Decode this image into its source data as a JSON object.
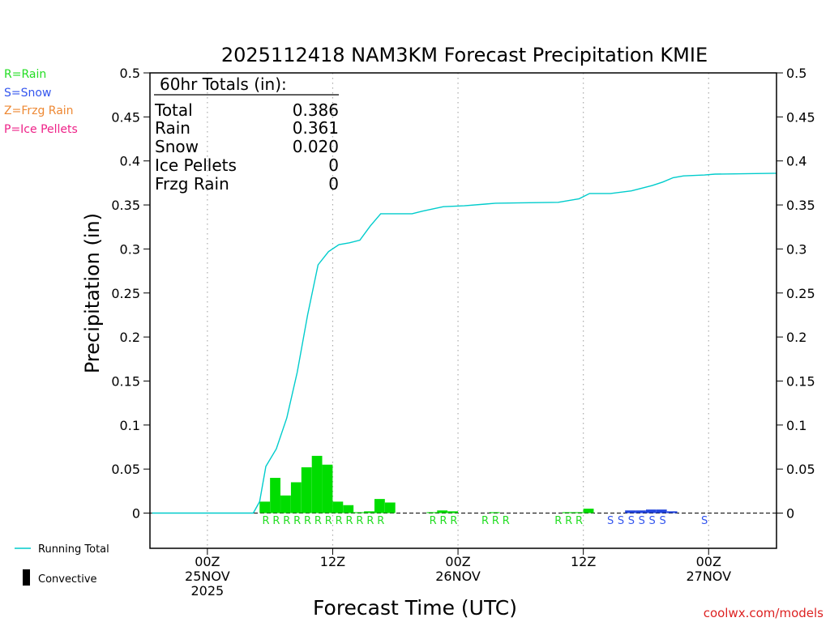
{
  "title": "2025112418 NAM3KM Forecast Precipitation KMIE",
  "legend_types": [
    {
      "label": "R=Rain",
      "color": "#22dd22"
    },
    {
      "label": "S=Snow",
      "color": "#3355ee"
    },
    {
      "label": "Z=Frzg Rain",
      "color": "#ee8833"
    },
    {
      "label": "P=Ice Pellets",
      "color": "#ee2288"
    }
  ],
  "totals": {
    "header": "60hr Totals (in):",
    "rows": [
      {
        "label": "Total",
        "value": "0.386"
      },
      {
        "label": "Rain",
        "value": "0.361"
      },
      {
        "label": "Snow",
        "value": "0.020"
      },
      {
        "label": "Ice Pellets",
        "value": "0"
      },
      {
        "label": "Frzg Rain",
        "value": "0"
      }
    ]
  },
  "bottom_legend": {
    "running_total": "Running Total",
    "convective": "Convective"
  },
  "credit": "coolwx.com/models",
  "colors": {
    "rain_bar": "#00dd00",
    "snow_bar": "#2244dd",
    "running_total": "#00cccc",
    "rain_marker": "#22dd22",
    "snow_marker": "#3355ee",
    "credit": "#dd2222"
  },
  "chart_data": {
    "type": "bar",
    "title": "2025112418 NAM3KM Forecast Precipitation KMIE",
    "xlabel": "Forecast Time (UTC)",
    "ylabel": "Precipitation (in)",
    "ylim": [
      -0.04,
      0.5
    ],
    "xlim_hours": [
      -5.5,
      54.5
    ],
    "yticks": [
      0,
      0.05,
      0.1,
      0.15,
      0.2,
      0.25,
      0.3,
      0.35,
      0.4,
      0.45,
      0.5
    ],
    "ytick_labels": [
      "0",
      "0.05",
      "0.1",
      "0.15",
      "0.2",
      "0.25",
      "0.3",
      "0.35",
      "0.4",
      "0.45",
      "0.5"
    ],
    "x_ticks": [
      {
        "hour": 0,
        "lines": [
          "00Z",
          "25NOV",
          "2025"
        ]
      },
      {
        "hour": 12,
        "lines": [
          "12Z"
        ]
      },
      {
        "hour": 24,
        "lines": [
          "00Z",
          "26NOV"
        ]
      },
      {
        "hour": 36,
        "lines": [
          "12Z"
        ]
      },
      {
        "hour": 48,
        "lines": [
          "00Z",
          "27NOV"
        ]
      }
    ],
    "rain_bars": [
      {
        "hour": 5,
        "value": 0.013
      },
      {
        "hour": 6,
        "value": 0.04
      },
      {
        "hour": 7,
        "value": 0.02
      },
      {
        "hour": 8,
        "value": 0.035
      },
      {
        "hour": 9,
        "value": 0.052
      },
      {
        "hour": 10,
        "value": 0.065
      },
      {
        "hour": 11,
        "value": 0.055
      },
      {
        "hour": 12,
        "value": 0.013
      },
      {
        "hour": 13,
        "value": 0.009
      },
      {
        "hour": 14,
        "value": 0.001
      },
      {
        "hour": 15,
        "value": 0.002
      },
      {
        "hour": 16,
        "value": 0.016
      },
      {
        "hour": 17,
        "value": 0.012
      },
      {
        "hour": 21,
        "value": 0.001
      },
      {
        "hour": 22,
        "value": 0.003
      },
      {
        "hour": 23,
        "value": 0.002
      },
      {
        "hour": 27,
        "value": 0.001
      },
      {
        "hour": 34,
        "value": 0.001
      },
      {
        "hour": 35,
        "value": 0.001
      },
      {
        "hour": 36,
        "value": 0.005
      }
    ],
    "snow_bars": [
      {
        "hour": 40,
        "value": 0.003
      },
      {
        "hour": 41,
        "value": 0.003
      },
      {
        "hour": 42,
        "value": 0.004
      },
      {
        "hour": 43,
        "value": 0.004
      },
      {
        "hour": 44,
        "value": 0.002
      }
    ],
    "running_total": [
      [
        -5.3,
        0
      ],
      [
        4.4,
        0
      ],
      [
        5,
        0.013
      ],
      [
        5.6,
        0.053
      ],
      [
        6.6,
        0.073
      ],
      [
        7.6,
        0.108
      ],
      [
        8.6,
        0.16
      ],
      [
        9.6,
        0.225
      ],
      [
        10.6,
        0.282
      ],
      [
        11.6,
        0.297
      ],
      [
        12.6,
        0.305
      ],
      [
        13.6,
        0.307
      ],
      [
        14.6,
        0.31
      ],
      [
        15.6,
        0.326
      ],
      [
        16.6,
        0.34
      ],
      [
        19.6,
        0.34
      ],
      [
        20.6,
        0.343
      ],
      [
        22.6,
        0.348
      ],
      [
        24.6,
        0.349
      ],
      [
        26.6,
        0.351
      ],
      [
        27.6,
        0.352
      ],
      [
        33.6,
        0.353
      ],
      [
        35.6,
        0.357
      ],
      [
        36.6,
        0.363
      ],
      [
        38.6,
        0.363
      ],
      [
        40.6,
        0.366
      ],
      [
        42.6,
        0.372
      ],
      [
        43.6,
        0.376
      ],
      [
        44.6,
        0.381
      ],
      [
        45.6,
        0.383
      ],
      [
        47.6,
        0.384
      ],
      [
        48.6,
        0.385
      ],
      [
        54.5,
        0.386
      ]
    ],
    "type_markers": [
      {
        "hour": 5.6,
        "type": "R"
      },
      {
        "hour": 6.6,
        "type": "R"
      },
      {
        "hour": 7.6,
        "type": "R"
      },
      {
        "hour": 8.6,
        "type": "R"
      },
      {
        "hour": 9.6,
        "type": "R"
      },
      {
        "hour": 10.6,
        "type": "R"
      },
      {
        "hour": 11.6,
        "type": "R"
      },
      {
        "hour": 12.6,
        "type": "R"
      },
      {
        "hour": 13.6,
        "type": "R"
      },
      {
        "hour": 14.6,
        "type": "R"
      },
      {
        "hour": 15.6,
        "type": "R"
      },
      {
        "hour": 16.6,
        "type": "R"
      },
      {
        "hour": 21.6,
        "type": "R"
      },
      {
        "hour": 22.6,
        "type": "R"
      },
      {
        "hour": 23.6,
        "type": "R"
      },
      {
        "hour": 26.6,
        "type": "R"
      },
      {
        "hour": 27.6,
        "type": "R"
      },
      {
        "hour": 28.6,
        "type": "R"
      },
      {
        "hour": 33.6,
        "type": "R"
      },
      {
        "hour": 34.6,
        "type": "R"
      },
      {
        "hour": 35.6,
        "type": "R"
      },
      {
        "hour": 38.6,
        "type": "S"
      },
      {
        "hour": 39.6,
        "type": "S"
      },
      {
        "hour": 40.6,
        "type": "S"
      },
      {
        "hour": 41.6,
        "type": "S"
      },
      {
        "hour": 42.6,
        "type": "S"
      },
      {
        "hour": 43.6,
        "type": "S"
      },
      {
        "hour": 47.6,
        "type": "S"
      }
    ]
  }
}
